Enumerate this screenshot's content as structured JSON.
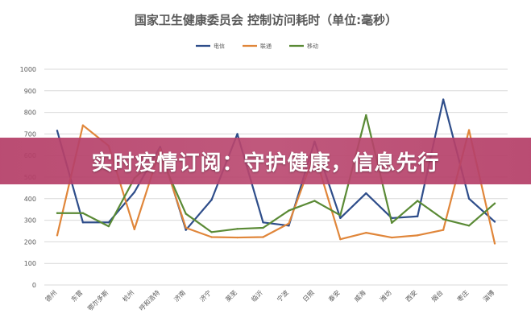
{
  "banner": {
    "text": "实时疫情订阅：守护健康，信息先行"
  },
  "chart_data": {
    "type": "line",
    "title": "国家卫生健康委员会 控制访问耗时（单位:毫秒）",
    "xlabel": "",
    "ylabel": "",
    "ylim": [
      0,
      1000
    ],
    "yticks": [
      0,
      100,
      200,
      300,
      400,
      500,
      600,
      700,
      800,
      900,
      1000
    ],
    "grid": true,
    "legend_position": "top-center",
    "categories": [
      "德州",
      "东营",
      "鄂尔多斯",
      "杭州",
      "呼和浩特",
      "济南",
      "济宁",
      "莱芜",
      "临沂",
      "宁波",
      "日照",
      "泰安",
      "威海",
      "潍坊",
      "西安",
      "烟台",
      "枣庄",
      "淄博"
    ],
    "series": [
      {
        "name": "电信",
        "color": "#2e4d8a",
        "values": [
          715,
          290,
          290,
          430,
          640,
          255,
          395,
          700,
          290,
          275,
          665,
          310,
          425,
          310,
          318,
          860,
          400,
          293
        ]
      },
      {
        "name": "联通",
        "color": "#e0863a",
        "values": [
          230,
          740,
          645,
          258,
          630,
          265,
          222,
          220,
          222,
          285,
          610,
          212,
          242,
          220,
          230,
          255,
          718,
          192
        ]
      },
      {
        "name": "移动",
        "color": "#5a8a35",
        "values": [
          333,
          333,
          272,
          495,
          600,
          330,
          245,
          260,
          265,
          345,
          390,
          323,
          787,
          288,
          390,
          305,
          275,
          378
        ]
      }
    ]
  }
}
